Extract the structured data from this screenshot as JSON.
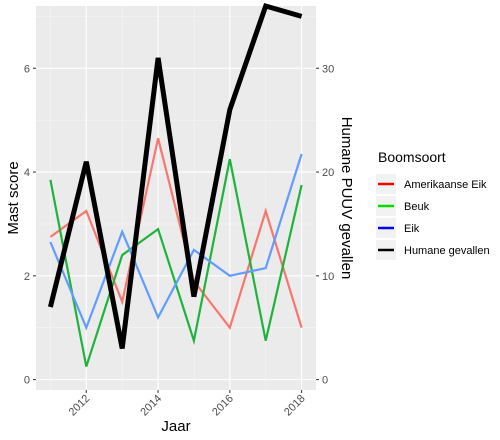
{
  "chart_data": {
    "type": "line",
    "x": [
      2011,
      2012,
      2013,
      2014,
      2015,
      2016,
      2017,
      2018
    ],
    "x_ticks": [
      "2012",
      "2014",
      "2016",
      "2018"
    ],
    "xlabel": "Jaar",
    "ylabel_left": "Mast score",
    "ylabel_right": "Humane PUUV gevallen",
    "ylim_left": [
      -0.2,
      7.2
    ],
    "ylim_right": [
      -1,
      36
    ],
    "yticks_left": [
      "0",
      "2",
      "4",
      "6"
    ],
    "yticks_right": [
      "0",
      "10",
      "20",
      "30"
    ],
    "grid": true,
    "background": "#ebebeb",
    "legend": {
      "title": "Boomsoort",
      "placement": "right",
      "entries": [
        {
          "label": "Amerikaanse Eik",
          "color": "#ff0000"
        },
        {
          "label": "Beuk",
          "color": "#00dd00"
        },
        {
          "label": "Eik",
          "color": "#0000ff"
        },
        {
          "label": "Humane gevallen",
          "color": "#000000"
        }
      ]
    },
    "series": [
      {
        "name": "Amerikaanse Eik",
        "axis": "left",
        "color": "#f8766d",
        "values": [
          2.75,
          3.25,
          1.5,
          4.65,
          1.9,
          1.0,
          3.25,
          1.0
        ]
      },
      {
        "name": "Beuk",
        "axis": "left",
        "color": "#1eb33c",
        "values": [
          3.85,
          0.25,
          2.4,
          2.9,
          0.75,
          4.25,
          0.75,
          3.75
        ]
      },
      {
        "name": "Eik",
        "axis": "left",
        "color": "#619cff",
        "values": [
          2.65,
          1.0,
          2.85,
          1.2,
          2.5,
          2.0,
          2.15,
          4.35
        ]
      },
      {
        "name": "Humane gevallen",
        "axis": "right",
        "color": "#000000",
        "values": [
          7,
          21,
          3,
          31,
          8,
          26,
          36,
          35
        ]
      }
    ]
  }
}
